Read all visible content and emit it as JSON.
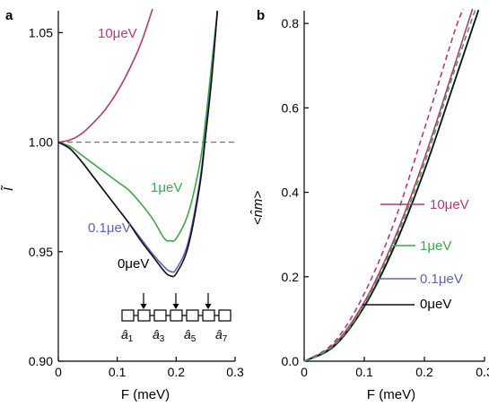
{
  "panel_a": {
    "label": "a",
    "xlabel": "F (meV)",
    "ylabel": "Ĩ",
    "xticks": [
      "0",
      "0.1",
      "0.2",
      "0.3"
    ],
    "yticks": [
      "0.90",
      "0.95",
      "1.00",
      "1.05"
    ],
    "inset_site_labels": [
      "â1",
      "â3",
      "â5",
      "â7"
    ]
  },
  "panel_b": {
    "label": "b",
    "xlabel": "F (meV)",
    "ylabel": "<n̂m>",
    "xticks": [
      "0",
      "0.1",
      "0.2",
      "0.3"
    ],
    "yticks": [
      "0.0",
      "0.2",
      "0.4",
      "0.6",
      "0.8"
    ]
  },
  "colors": {
    "10μeV": "#b03a7a",
    "1μeV": "#3fa64a",
    "0.1μeV": "#5b63b8",
    "0μeV": "#111111",
    "reference": "#777777"
  },
  "chart_data": [
    {
      "type": "line",
      "panel": "a",
      "xlabel": "F (meV)",
      "ylabel": "Ĩ",
      "xlim": [
        0,
        0.3
      ],
      "ylim": [
        0.9,
        1.06
      ],
      "reference_line": {
        "y": 1.0,
        "style": "dashed"
      },
      "series": [
        {
          "name": "10μeV",
          "color": "#b03a7a",
          "x": [
            0,
            0.02,
            0.04,
            0.06,
            0.08,
            0.1,
            0.12,
            0.14,
            0.16
          ],
          "y": [
            1.0,
            1.001,
            1.004,
            1.009,
            1.015,
            1.023,
            1.033,
            1.045,
            1.062
          ]
        },
        {
          "name": "1μeV",
          "color": "#3fa64a",
          "x": [
            0,
            0.02,
            0.04,
            0.06,
            0.08,
            0.1,
            0.12,
            0.14,
            0.16,
            0.18,
            0.19,
            0.2,
            0.22,
            0.24,
            0.25,
            0.26,
            0.27
          ],
          "y": [
            1.0,
            0.998,
            0.994,
            0.99,
            0.986,
            0.982,
            0.978,
            0.972,
            0.965,
            0.956,
            0.955,
            0.956,
            0.967,
            0.99,
            1.01,
            1.035,
            1.06
          ]
        },
        {
          "name": "0.1μeV",
          "color": "#5b63b8",
          "x": [
            0,
            0.02,
            0.04,
            0.06,
            0.08,
            0.1,
            0.12,
            0.14,
            0.16,
            0.18,
            0.19,
            0.2,
            0.22,
            0.24,
            0.25,
            0.26,
            0.27
          ],
          "y": [
            1.0,
            0.997,
            0.991,
            0.984,
            0.977,
            0.97,
            0.963,
            0.956,
            0.949,
            0.943,
            0.941,
            0.942,
            0.954,
            0.982,
            1.005,
            1.03,
            1.06
          ]
        },
        {
          "name": "0μeV",
          "color": "#111111",
          "x": [
            0,
            0.02,
            0.04,
            0.06,
            0.08,
            0.1,
            0.12,
            0.14,
            0.16,
            0.18,
            0.19,
            0.2,
            0.22,
            0.24,
            0.25,
            0.26,
            0.27
          ],
          "y": [
            1.0,
            0.997,
            0.991,
            0.984,
            0.977,
            0.97,
            0.963,
            0.955,
            0.948,
            0.941,
            0.939,
            0.94,
            0.952,
            0.98,
            1.003,
            1.028,
            1.06
          ]
        }
      ],
      "annotations": [
        "10μeV",
        "1μeV",
        "0.1μeV",
        "0μeV"
      ]
    },
    {
      "type": "line",
      "panel": "b",
      "xlabel": "F (meV)",
      "ylabel": "<n̂m>",
      "xlim": [
        0,
        0.3
      ],
      "ylim": [
        0,
        0.83
      ],
      "series": [
        {
          "name": "10μeV",
          "color": "#b03a7a",
          "x": [
            0,
            0.05,
            0.1,
            0.15,
            0.2,
            0.25,
            0.28
          ],
          "y": [
            0,
            0.04,
            0.14,
            0.29,
            0.48,
            0.7,
            0.84
          ]
        },
        {
          "name": "1μeV",
          "color": "#3fa64a",
          "x": [
            0,
            0.05,
            0.1,
            0.15,
            0.2,
            0.25,
            0.29
          ],
          "y": [
            0,
            0.035,
            0.128,
            0.27,
            0.45,
            0.66,
            0.83
          ]
        },
        {
          "name": "0.1μeV",
          "color": "#5b63b8",
          "x": [
            0,
            0.05,
            0.1,
            0.15,
            0.2,
            0.25,
            0.29
          ],
          "y": [
            0,
            0.036,
            0.13,
            0.272,
            0.452,
            0.662,
            0.832
          ]
        },
        {
          "name": "0μeV",
          "color": "#111111",
          "x": [
            0,
            0.05,
            0.1,
            0.15,
            0.2,
            0.25,
            0.29
          ],
          "y": [
            0,
            0.036,
            0.13,
            0.272,
            0.452,
            0.662,
            0.832
          ]
        },
        {
          "name": "10μeV dashed",
          "color": "#b03a7a",
          "dashed": true,
          "x": [
            0,
            0.05,
            0.1,
            0.15,
            0.2,
            0.25,
            0.265
          ],
          "y": [
            0,
            0.045,
            0.16,
            0.33,
            0.55,
            0.78,
            0.84
          ]
        },
        {
          "name": "1μeV dashed",
          "color": "#3fa64a",
          "dashed": true,
          "x": [
            0,
            0.05,
            0.1,
            0.15,
            0.2,
            0.25,
            0.285
          ],
          "y": [
            0,
            0.038,
            0.134,
            0.282,
            0.468,
            0.688,
            0.84
          ]
        }
      ],
      "annotations": [
        "10μeV",
        "1μeV",
        "0.1μeV",
        "0μeV"
      ]
    }
  ]
}
